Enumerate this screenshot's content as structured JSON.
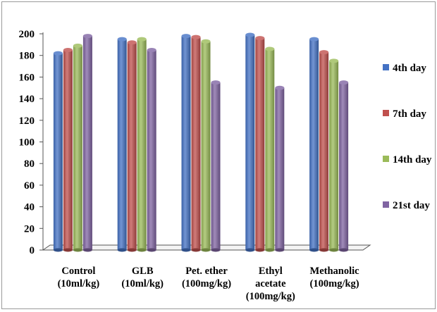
{
  "chart_data": {
    "type": "bar",
    "title": "",
    "xlabel": "",
    "ylabel": "",
    "ylim": [
      0,
      200
    ],
    "yticks": [
      0,
      20,
      40,
      60,
      80,
      100,
      120,
      140,
      160,
      180,
      200
    ],
    "grid": false,
    "legend_position": "right",
    "categories": [
      [
        "Control",
        "(10ml/kg)"
      ],
      [
        "GLB",
        "(10ml/kg)"
      ],
      [
        "Pet. ether",
        "(100mg/kg)"
      ],
      [
        "Ethyl",
        "acetate",
        "(100mg/kg)"
      ],
      [
        "Methanolic",
        "(100mg/kg)"
      ]
    ],
    "series": [
      {
        "name": "4th day",
        "color": "#4472c4",
        "values": [
          182,
          195,
          198,
          199,
          195
        ]
      },
      {
        "name": "7th day",
        "color": "#c0504d",
        "values": [
          185,
          192,
          197,
          196,
          183
        ]
      },
      {
        "name": "14th day",
        "color": "#9bbb59",
        "values": [
          189,
          195,
          193,
          186,
          175
        ]
      },
      {
        "name": "21st day",
        "color": "#8064a2",
        "values": [
          198,
          185,
          155,
          150,
          155
        ]
      }
    ]
  }
}
